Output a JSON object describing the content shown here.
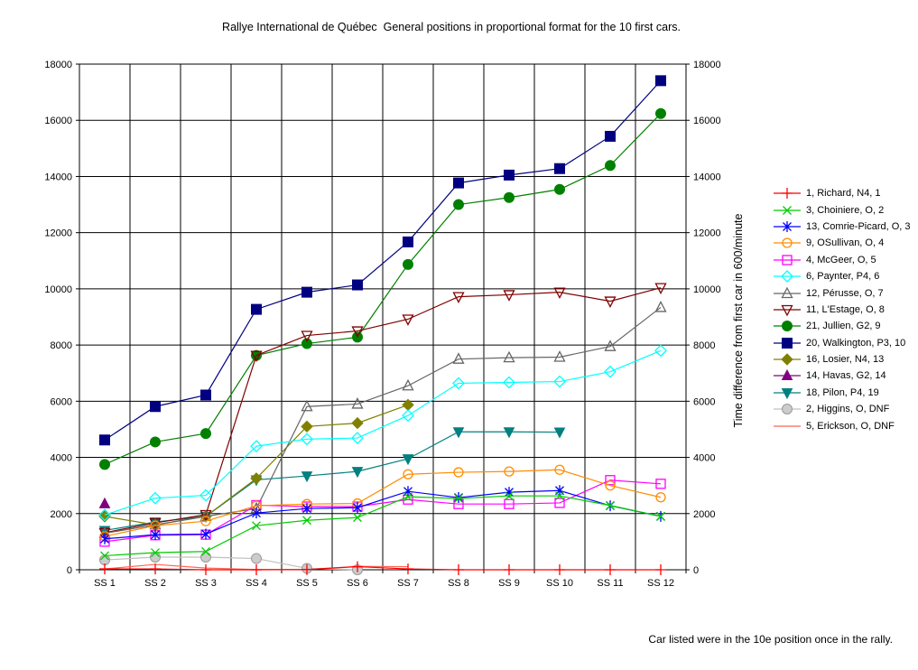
{
  "title": "Rallye International de Québec  General positions in proportional format for the 10 first cars.",
  "footer": "Car listed were in the 10e position once in the rally.",
  "chart_data": {
    "type": "line",
    "title": "Rallye International de Québec  General positions in proportional format for the 10 first cars.",
    "ylabel_right": "Time difference from first car in 600/minute",
    "ylim": [
      0,
      18000
    ],
    "ytick_step": 2000,
    "yticks": [
      "0",
      "2000",
      "4000",
      "6000",
      "8000",
      "10000",
      "12000",
      "14000",
      "16000",
      "18000"
    ],
    "categories": [
      "SS 1",
      "SS 2",
      "SS 3",
      "SS 4",
      "SS 5",
      "SS 6",
      "SS 7",
      "SS 8",
      "SS 9",
      "SS 10",
      "SS 11",
      "SS 12"
    ],
    "grid": true,
    "legend_position": "right",
    "series": [
      {
        "name": "1, Richard, N4, 1",
        "color": "#FF0000",
        "marker": "plus",
        "values": [
          30,
          30,
          0,
          0,
          10,
          110,
          30,
          0,
          0,
          0,
          0,
          0
        ]
      },
      {
        "name": "3, Choiniere, O, 2",
        "color": "#00CC00",
        "marker": "x",
        "values": [
          500,
          610,
          650,
          1570,
          1760,
          1860,
          2600,
          2540,
          2630,
          2630,
          2290,
          1900
        ]
      },
      {
        "name": "13, Comrie-Picard, O, 3",
        "color": "#0000FF",
        "marker": "asterisk",
        "values": [
          1100,
          1250,
          1270,
          2020,
          2180,
          2210,
          2790,
          2570,
          2760,
          2820,
          2280,
          1900
        ]
      },
      {
        "name": "9, OSullivan, O, 4",
        "color": "#FF8C00",
        "marker": "circle-open",
        "values": [
          1190,
          1570,
          1730,
          2280,
          2340,
          2360,
          3400,
          3470,
          3500,
          3560,
          3000,
          2580
        ]
      },
      {
        "name": "4, McGeer, O, 5",
        "color": "#FF00FF",
        "marker": "square-open",
        "values": [
          1000,
          1230,
          1250,
          2300,
          2250,
          2250,
          2500,
          2340,
          2340,
          2380,
          3190,
          3060
        ]
      },
      {
        "name": "6, Paynter, P4, 6",
        "color": "#00FFFF",
        "marker": "diamond-open",
        "values": [
          1950,
          2550,
          2650,
          4400,
          4650,
          4690,
          5490,
          6640,
          6670,
          6700,
          7050,
          7800
        ]
      },
      {
        "name": "12, Pérusse, O, 7",
        "color": "#666666",
        "marker": "triangle-open",
        "values": [
          1300,
          1600,
          1900,
          2180,
          5810,
          5900,
          6550,
          7500,
          7550,
          7570,
          7950,
          9340
        ]
      },
      {
        "name": "11, L'Estage, O, 8",
        "color": "#800000",
        "marker": "triangle-down-open",
        "values": [
          1320,
          1670,
          1960,
          7630,
          8340,
          8500,
          8920,
          9720,
          9790,
          9880,
          9560,
          10040
        ]
      },
      {
        "name": "21, Jullien, G2, 9",
        "color": "#008000",
        "marker": "circle",
        "values": [
          3750,
          4550,
          4850,
          7630,
          8050,
          8280,
          10870,
          13000,
          13250,
          13540,
          14390,
          16240
        ]
      },
      {
        "name": "20, Walkington, P3, 10",
        "color": "#000080",
        "marker": "square",
        "values": [
          4620,
          5810,
          6220,
          9270,
          9880,
          10140,
          11670,
          13770,
          14050,
          14280,
          15430,
          17410
        ]
      },
      {
        "name": "16, Losier, N4, 13",
        "color": "#808000",
        "marker": "diamond",
        "values": [
          1900,
          1600,
          1900,
          3250,
          5100,
          5220,
          5870,
          null,
          null,
          null,
          null,
          null
        ]
      },
      {
        "name": "14, Havas, G2, 14",
        "color": "#800080",
        "marker": "triangle",
        "values": [
          2350,
          null,
          null,
          null,
          null,
          null,
          null,
          null,
          null,
          null,
          null,
          null
        ]
      },
      {
        "name": "18, Pilon, P4, 19",
        "color": "#008080",
        "marker": "triangle-down",
        "values": [
          1400,
          1700,
          1900,
          3200,
          3340,
          3500,
          3950,
          4910,
          4910,
          4900,
          null,
          null
        ]
      },
      {
        "name": "2, Higgins, O, DNF",
        "color": "#C0C0C0",
        "marker": "shaded-circle",
        "values": [
          350,
          450,
          450,
          400,
          50,
          0,
          null,
          null,
          null,
          null,
          null,
          null
        ]
      },
      {
        "name": "5, Erickson, O, DNF",
        "color": "#FF6655",
        "marker": "none",
        "values": [
          30,
          190,
          60,
          10,
          10,
          120,
          110,
          null,
          null,
          null,
          null,
          null
        ]
      }
    ]
  }
}
